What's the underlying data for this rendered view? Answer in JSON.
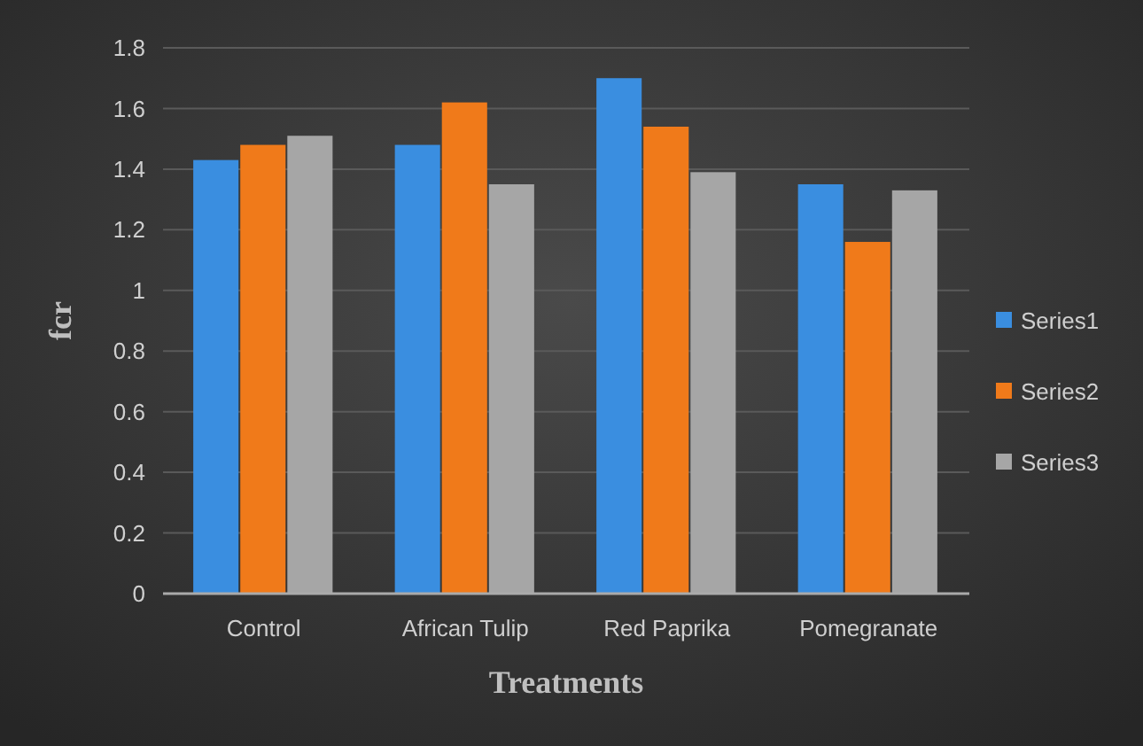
{
  "chart_data": {
    "type": "bar",
    "xlabel": "Treatments",
    "ylabel": "fcr",
    "categories": [
      "Control",
      "African Tulip",
      "Red Paprika",
      "Pomegranate"
    ],
    "series": [
      {
        "name": "Series1",
        "color": "#3a8ee0",
        "values": [
          1.43,
          1.48,
          1.7,
          1.35
        ]
      },
      {
        "name": "Series2",
        "color": "#f07a1a",
        "values": [
          1.48,
          1.62,
          1.54,
          1.16
        ]
      },
      {
        "name": "Series3",
        "color": "#a6a6a6",
        "values": [
          1.51,
          1.35,
          1.39,
          1.33
        ]
      }
    ],
    "ylim": [
      0,
      1.8
    ],
    "yticks": [
      0,
      0.2,
      0.4,
      0.6,
      0.8,
      1,
      1.2,
      1.4,
      1.6,
      1.8
    ],
    "grid": "y",
    "legend": "right"
  }
}
